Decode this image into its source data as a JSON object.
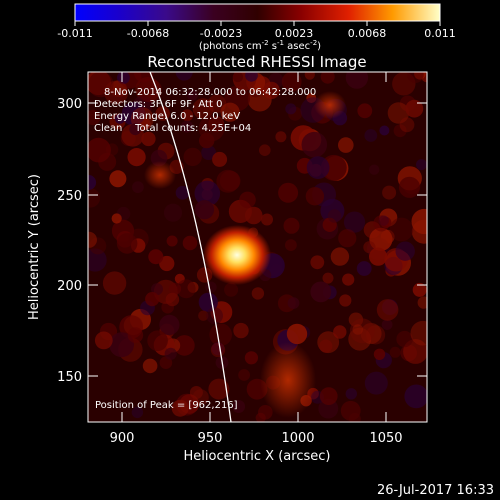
{
  "colorbar": {
    "ticks": [
      "-0.011",
      "-0.0068",
      "-0.0023",
      "0.0023",
      "0.0068",
      "0.011"
    ],
    "unit_label_prefix": "(photons cm",
    "unit_exp1": "-2",
    "unit_mid1": " s",
    "unit_exp2": "-1",
    "unit_mid2": " asec",
    "unit_exp3": "-2",
    "unit_suffix": ")"
  },
  "plot": {
    "title": "Reconstructed RHESSI Image",
    "xlabel": "Heliocentric X (arcsec)",
    "ylabel": "Heliocentric Y (arcsec)",
    "x_ticks": [
      "900",
      "950",
      "1000",
      "1050"
    ],
    "y_ticks": [
      "300",
      "250",
      "200",
      "150"
    ],
    "xlim": [
      876,
      1068
    ],
    "ylim": [
      124,
      316
    ]
  },
  "annotations": {
    "time_range": "8-Nov-2014 06:32:28.000 to 06:42:28.000",
    "detectors": "Detectors: 3F 6F 9F, Att 0",
    "energy": "Energy Range: 6.0 - 12.0 keV",
    "clean": "Clean    Total counts: 4.25E+04",
    "peak": "Position of Peak = [962,216]"
  },
  "footer": {
    "timestamp": "26-Jul-2017 16:33"
  },
  "image": {
    "peak_x": 962,
    "peak_y": 216
  }
}
